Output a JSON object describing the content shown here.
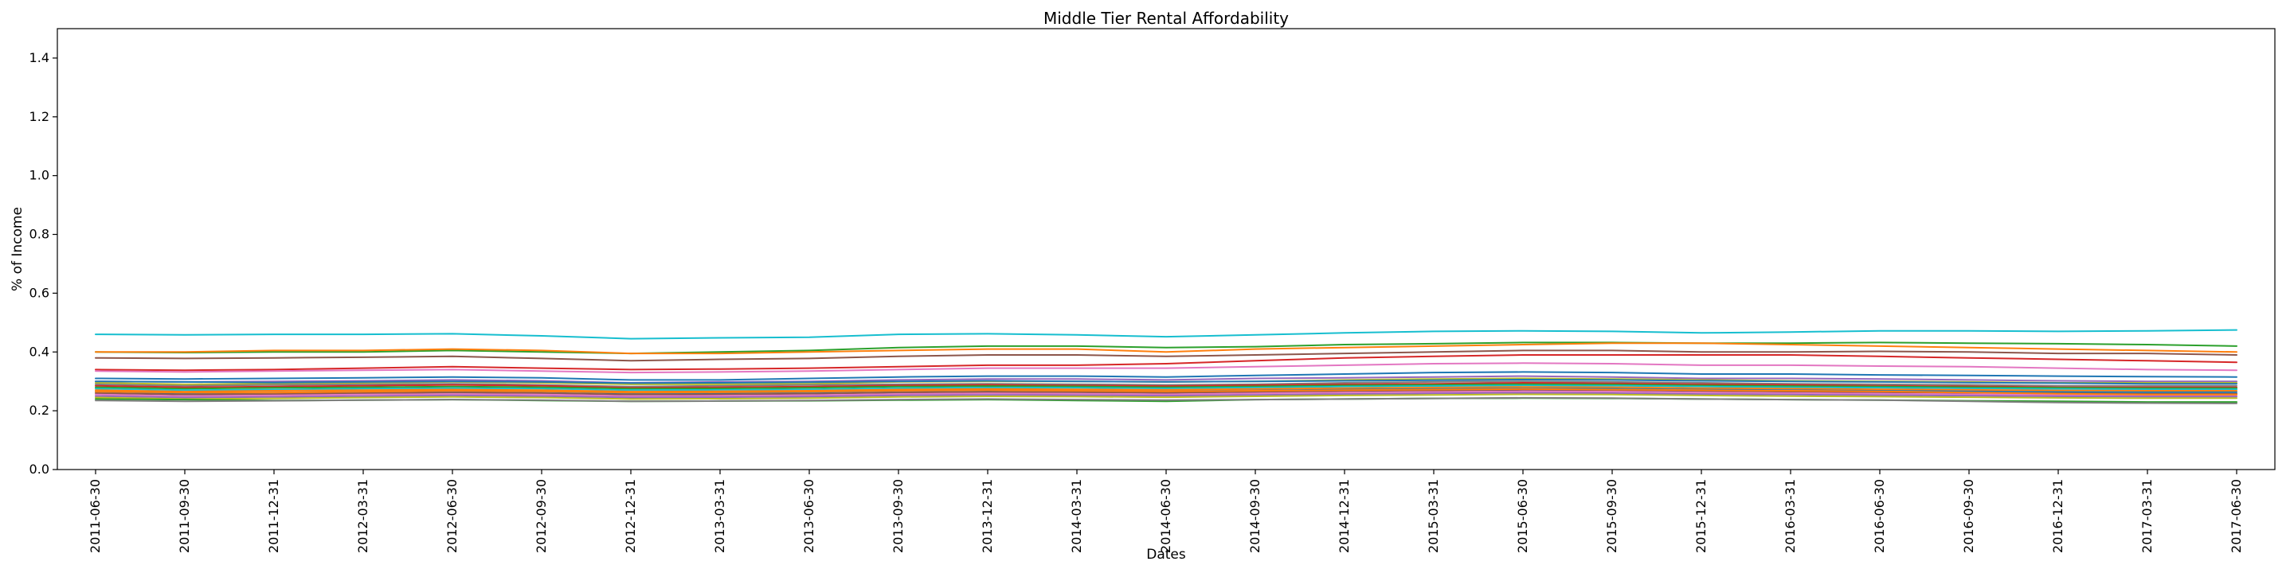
{
  "chart_data": {
    "type": "line",
    "title": "Middle Tier Rental Affordability",
    "xlabel": "Dates",
    "ylabel": "% of Income",
    "ylim": [
      0.0,
      1.5
    ],
    "yticks": [
      "0.0",
      "0.2",
      "0.4",
      "0.6",
      "0.8",
      "1.0",
      "1.2",
      "1.4"
    ],
    "grid": false,
    "legend": "none",
    "x": [
      "2011-06-30",
      "2011-09-30",
      "2011-12-31",
      "2012-03-31",
      "2012-06-30",
      "2012-09-30",
      "2012-12-31",
      "2013-03-31",
      "2013-06-30",
      "2013-09-30",
      "2013-12-31",
      "2014-03-31",
      "2014-06-30",
      "2014-09-30",
      "2014-12-31",
      "2015-03-31",
      "2015-06-30",
      "2015-09-30",
      "2015-12-31",
      "2016-03-31",
      "2016-06-30",
      "2016-09-30",
      "2016-12-31",
      "2017-03-31",
      "2017-06-30"
    ],
    "series": [
      {
        "color": "#17becf",
        "values": [
          0.46,
          0.458,
          0.46,
          0.46,
          0.462,
          0.455,
          0.445,
          0.448,
          0.45,
          0.46,
          0.462,
          0.458,
          0.452,
          0.458,
          0.465,
          0.47,
          0.472,
          0.47,
          0.465,
          0.468,
          0.472,
          0.472,
          0.47,
          0.472,
          0.475
        ]
      },
      {
        "color": "#2ca02c",
        "values": [
          0.4,
          0.398,
          0.4,
          0.4,
          0.405,
          0.4,
          0.395,
          0.4,
          0.405,
          0.415,
          0.42,
          0.42,
          0.415,
          0.418,
          0.425,
          0.428,
          0.432,
          0.432,
          0.43,
          0.43,
          0.432,
          0.43,
          0.428,
          0.425,
          0.42
        ]
      },
      {
        "color": "#ff7f0e",
        "values": [
          0.4,
          0.4,
          0.405,
          0.405,
          0.41,
          0.405,
          0.395,
          0.395,
          0.4,
          0.405,
          0.41,
          0.41,
          0.4,
          0.41,
          0.415,
          0.42,
          0.425,
          0.43,
          0.43,
          0.425,
          0.42,
          0.415,
          0.41,
          0.405,
          0.4
        ]
      },
      {
        "color": "#8c564b",
        "values": [
          0.38,
          0.378,
          0.38,
          0.382,
          0.385,
          0.378,
          0.37,
          0.375,
          0.378,
          0.385,
          0.39,
          0.39,
          0.385,
          0.39,
          0.395,
          0.4,
          0.405,
          0.405,
          0.4,
          0.4,
          0.402,
          0.4,
          0.395,
          0.395,
          0.39
        ]
      },
      {
        "color": "#d62728",
        "values": [
          0.34,
          0.338,
          0.34,
          0.345,
          0.35,
          0.345,
          0.34,
          0.342,
          0.345,
          0.35,
          0.355,
          0.355,
          0.36,
          0.37,
          0.38,
          0.385,
          0.39,
          0.39,
          0.39,
          0.39,
          0.385,
          0.38,
          0.375,
          0.37,
          0.365
        ]
      },
      {
        "color": "#e377c2",
        "values": [
          0.335,
          0.332,
          0.335,
          0.338,
          0.34,
          0.335,
          0.33,
          0.332,
          0.335,
          0.34,
          0.345,
          0.345,
          0.345,
          0.35,
          0.355,
          0.36,
          0.362,
          0.36,
          0.355,
          0.355,
          0.352,
          0.35,
          0.345,
          0.34,
          0.338
        ]
      },
      {
        "color": "#1f77b4",
        "values": [
          0.31,
          0.308,
          0.31,
          0.312,
          0.315,
          0.312,
          0.305,
          0.305,
          0.31,
          0.315,
          0.318,
          0.318,
          0.315,
          0.32,
          0.325,
          0.33,
          0.332,
          0.33,
          0.325,
          0.325,
          0.322,
          0.32,
          0.318,
          0.316,
          0.315
        ]
      },
      {
        "color": "#9467bd",
        "values": [
          0.3,
          0.298,
          0.3,
          0.302,
          0.305,
          0.302,
          0.295,
          0.298,
          0.3,
          0.305,
          0.308,
          0.308,
          0.305,
          0.31,
          0.312,
          0.315,
          0.318,
          0.315,
          0.31,
          0.31,
          0.308,
          0.305,
          0.302,
          0.3,
          0.3
        ]
      },
      {
        "color": "#bcbd22",
        "values": [
          0.295,
          0.29,
          0.292,
          0.295,
          0.298,
          0.295,
          0.29,
          0.29,
          0.292,
          0.298,
          0.3,
          0.3,
          0.298,
          0.3,
          0.305,
          0.308,
          0.31,
          0.308,
          0.305,
          0.302,
          0.3,
          0.298,
          0.295,
          0.295,
          0.295
        ]
      },
      {
        "color": "#7f7f7f",
        "values": [
          0.29,
          0.285,
          0.288,
          0.29,
          0.292,
          0.288,
          0.282,
          0.285,
          0.288,
          0.29,
          0.292,
          0.29,
          0.288,
          0.29,
          0.295,
          0.298,
          0.3,
          0.298,
          0.295,
          0.292,
          0.29,
          0.288,
          0.285,
          0.285,
          0.285
        ]
      },
      {
        "color": "#d62728",
        "values": [
          0.285,
          0.28,
          0.282,
          0.285,
          0.288,
          0.285,
          0.278,
          0.28,
          0.282,
          0.286,
          0.288,
          0.286,
          0.284,
          0.287,
          0.29,
          0.292,
          0.295,
          0.293,
          0.29,
          0.288,
          0.285,
          0.283,
          0.28,
          0.28,
          0.28
        ]
      },
      {
        "color": "#2ca02c",
        "values": [
          0.28,
          0.275,
          0.278,
          0.28,
          0.282,
          0.28,
          0.275,
          0.276,
          0.278,
          0.282,
          0.284,
          0.283,
          0.28,
          0.283,
          0.286,
          0.288,
          0.29,
          0.289,
          0.286,
          0.284,
          0.282,
          0.28,
          0.278,
          0.277,
          0.277
        ]
      },
      {
        "color": "#17becf",
        "values": [
          0.275,
          0.27,
          0.272,
          0.275,
          0.277,
          0.275,
          0.27,
          0.271,
          0.273,
          0.277,
          0.279,
          0.278,
          0.276,
          0.279,
          0.282,
          0.284,
          0.286,
          0.285,
          0.282,
          0.28,
          0.278,
          0.276,
          0.274,
          0.273,
          0.273
        ]
      },
      {
        "color": "#ff7f0e",
        "values": [
          0.27,
          0.265,
          0.268,
          0.27,
          0.272,
          0.27,
          0.265,
          0.266,
          0.268,
          0.272,
          0.274,
          0.273,
          0.271,
          0.274,
          0.277,
          0.279,
          0.281,
          0.28,
          0.277,
          0.275,
          0.273,
          0.271,
          0.269,
          0.268,
          0.268
        ]
      },
      {
        "color": "#1f77b4",
        "values": [
          0.265,
          0.26,
          0.262,
          0.265,
          0.267,
          0.265,
          0.26,
          0.261,
          0.263,
          0.267,
          0.269,
          0.268,
          0.266,
          0.269,
          0.272,
          0.274,
          0.276,
          0.275,
          0.272,
          0.27,
          0.268,
          0.266,
          0.264,
          0.263,
          0.263
        ]
      },
      {
        "color": "#8c564b",
        "values": [
          0.26,
          0.255,
          0.257,
          0.26,
          0.262,
          0.26,
          0.255,
          0.256,
          0.258,
          0.262,
          0.264,
          0.263,
          0.261,
          0.264,
          0.267,
          0.269,
          0.271,
          0.27,
          0.267,
          0.265,
          0.263,
          0.261,
          0.259,
          0.258,
          0.258
        ]
      },
      {
        "color": "#e377c2",
        "values": [
          0.255,
          0.25,
          0.252,
          0.255,
          0.257,
          0.255,
          0.25,
          0.251,
          0.253,
          0.257,
          0.259,
          0.258,
          0.256,
          0.259,
          0.262,
          0.264,
          0.266,
          0.265,
          0.262,
          0.26,
          0.258,
          0.256,
          0.254,
          0.253,
          0.253
        ]
      },
      {
        "color": "#9467bd",
        "values": [
          0.25,
          0.245,
          0.247,
          0.25,
          0.252,
          0.25,
          0.245,
          0.246,
          0.248,
          0.252,
          0.254,
          0.253,
          0.251,
          0.254,
          0.257,
          0.259,
          0.261,
          0.26,
          0.257,
          0.255,
          0.253,
          0.251,
          0.249,
          0.248,
          0.248
        ]
      },
      {
        "color": "#bcbd22",
        "values": [
          0.245,
          0.24,
          0.242,
          0.245,
          0.247,
          0.245,
          0.24,
          0.241,
          0.243,
          0.247,
          0.249,
          0.248,
          0.246,
          0.249,
          0.252,
          0.254,
          0.256,
          0.255,
          0.252,
          0.25,
          0.248,
          0.246,
          0.244,
          0.243,
          0.243
        ]
      },
      {
        "color": "#2ca02c",
        "values": [
          0.24,
          0.238,
          0.235,
          0.236,
          0.238,
          0.235,
          0.232,
          0.233,
          0.234,
          0.236,
          0.238,
          0.235,
          0.232,
          0.238,
          0.24,
          0.242,
          0.243,
          0.242,
          0.24,
          0.238,
          0.236,
          0.234,
          0.232,
          0.23,
          0.23
        ]
      },
      {
        "color": "#7f7f7f",
        "values": [
          0.235,
          0.232,
          0.234,
          0.236,
          0.238,
          0.236,
          0.232,
          0.233,
          0.235,
          0.238,
          0.24,
          0.238,
          0.236,
          0.238,
          0.24,
          0.242,
          0.244,
          0.243,
          0.24,
          0.238,
          0.236,
          0.232,
          0.228,
          0.226,
          0.225
        ]
      },
      {
        "color": "#ff7f0e",
        "values": [
          0.265,
          0.262,
          0.262,
          0.265,
          0.268,
          0.266,
          0.262,
          0.263,
          0.265,
          0.268,
          0.27,
          0.268,
          0.266,
          0.268,
          0.27,
          0.272,
          0.274,
          0.272,
          0.27,
          0.268,
          0.266,
          0.262,
          0.258,
          0.255,
          0.255
        ]
      },
      {
        "color": "#1f77b4",
        "values": [
          0.3,
          0.298,
          0.296,
          0.298,
          0.3,
          0.298,
          0.294,
          0.295,
          0.297,
          0.3,
          0.302,
          0.3,
          0.298,
          0.3,
          0.302,
          0.304,
          0.306,
          0.305,
          0.302,
          0.3,
          0.298,
          0.296,
          0.294,
          0.292,
          0.292
        ]
      }
    ]
  }
}
